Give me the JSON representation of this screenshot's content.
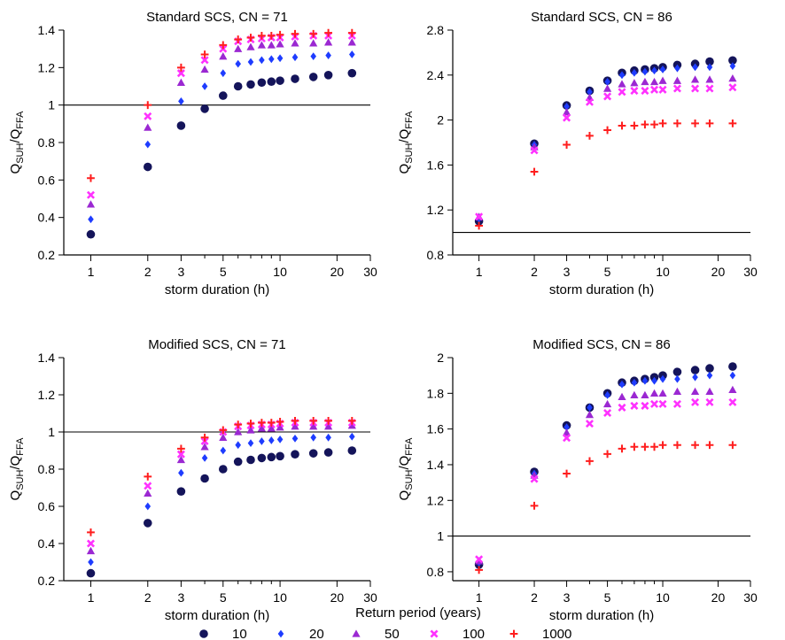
{
  "x_label": "storm duration (h)",
  "y_label": {
    "main": "Q",
    "sub1": "SUH",
    "sep": "/Q",
    "sub2": "FFA"
  },
  "legend": {
    "title": "Return period (years)",
    "entries": [
      {
        "label": "10",
        "color": "#14145a",
        "marker": "circle"
      },
      {
        "label": "20",
        "color": "#1e3cff",
        "marker": "diamond"
      },
      {
        "label": "50",
        "color": "#9b28d2",
        "marker": "triangle"
      },
      {
        "label": "100",
        "color": "#ff32ff",
        "marker": "x"
      },
      {
        "label": "1000",
        "color": "#ff1e1e",
        "marker": "plus"
      }
    ]
  },
  "chart_data": [
    {
      "type": "scatter",
      "title": "Standard SCS, CN = 71",
      "x_scale": "log",
      "xlim": [
        0.72,
        30
      ],
      "x_ticks": [
        1,
        2,
        3,
        5,
        10,
        20,
        30
      ],
      "ylim": [
        0.2,
        1.4
      ],
      "y_ticks": [
        "0.2",
        "0.4",
        "0.6",
        "0.8",
        "1",
        "1.2",
        "1.4"
      ],
      "reference_line": 1,
      "x": [
        1,
        2,
        3,
        4,
        5,
        6,
        7,
        8,
        9,
        10,
        12,
        15,
        18,
        24
      ],
      "series": [
        {
          "name": "10",
          "values": [
            0.31,
            0.67,
            0.89,
            0.98,
            1.05,
            1.1,
            1.11,
            1.12,
            1.125,
            1.13,
            1.14,
            1.15,
            1.16,
            1.17
          ]
        },
        {
          "name": "20",
          "values": [
            0.39,
            0.79,
            1.02,
            1.1,
            1.17,
            1.22,
            1.23,
            1.24,
            1.245,
            1.25,
            1.255,
            1.26,
            1.265,
            1.27
          ]
        },
        {
          "name": "50",
          "values": [
            0.47,
            0.88,
            1.12,
            1.19,
            1.26,
            1.3,
            1.31,
            1.32,
            1.32,
            1.325,
            1.33,
            1.33,
            1.335,
            1.335
          ]
        },
        {
          "name": "100",
          "values": [
            0.52,
            0.94,
            1.17,
            1.24,
            1.3,
            1.34,
            1.35,
            1.355,
            1.36,
            1.36,
            1.365,
            1.37,
            1.37,
            1.37
          ]
        },
        {
          "name": "1000",
          "values": [
            0.61,
            1.0,
            1.2,
            1.27,
            1.32,
            1.35,
            1.36,
            1.37,
            1.37,
            1.375,
            1.38,
            1.38,
            1.385,
            1.385
          ]
        }
      ]
    },
    {
      "type": "scatter",
      "title": "Standard SCS, CN = 86",
      "x_scale": "log",
      "xlim": [
        0.72,
        30
      ],
      "x_ticks": [
        1,
        2,
        3,
        5,
        10,
        20,
        30
      ],
      "ylim": [
        0.8,
        2.8
      ],
      "y_ticks": [
        "0.8",
        "1.2",
        "1.6",
        "2",
        "2.4",
        "2.8"
      ],
      "reference_line": 1,
      "x": [
        1,
        2,
        3,
        4,
        5,
        6,
        7,
        8,
        9,
        10,
        12,
        15,
        18,
        24
      ],
      "series": [
        {
          "name": "10",
          "values": [
            1.1,
            1.79,
            2.13,
            2.26,
            2.35,
            2.42,
            2.44,
            2.45,
            2.46,
            2.47,
            2.49,
            2.5,
            2.52,
            2.53
          ]
        },
        {
          "name": "20",
          "values": [
            1.12,
            1.78,
            2.12,
            2.25,
            2.34,
            2.4,
            2.42,
            2.43,
            2.44,
            2.45,
            2.46,
            2.47,
            2.47,
            2.48
          ]
        },
        {
          "name": "50",
          "values": [
            1.14,
            1.76,
            2.07,
            2.2,
            2.28,
            2.32,
            2.33,
            2.34,
            2.34,
            2.35,
            2.35,
            2.36,
            2.36,
            2.37
          ]
        },
        {
          "name": "100",
          "values": [
            1.14,
            1.73,
            2.02,
            2.16,
            2.21,
            2.25,
            2.26,
            2.26,
            2.27,
            2.27,
            2.28,
            2.28,
            2.28,
            2.29
          ]
        },
        {
          "name": "1000",
          "values": [
            1.06,
            1.54,
            1.78,
            1.86,
            1.91,
            1.95,
            1.95,
            1.96,
            1.96,
            1.97,
            1.97,
            1.97,
            1.97,
            1.97
          ]
        }
      ]
    },
    {
      "type": "scatter",
      "title": "Modified SCS, CN = 71",
      "x_scale": "log",
      "xlim": [
        0.72,
        30
      ],
      "x_ticks": [
        1,
        2,
        3,
        5,
        10,
        20,
        30
      ],
      "ylim": [
        0.2,
        1.4
      ],
      "y_ticks": [
        "0.2",
        "0.4",
        "0.6",
        "0.8",
        "1",
        "1.2",
        "1.4"
      ],
      "reference_line": 1,
      "x": [
        1,
        2,
        3,
        4,
        5,
        6,
        7,
        8,
        9,
        10,
        12,
        15,
        18,
        24
      ],
      "series": [
        {
          "name": "10",
          "values": [
            0.24,
            0.51,
            0.68,
            0.75,
            0.8,
            0.84,
            0.85,
            0.86,
            0.865,
            0.87,
            0.88,
            0.885,
            0.89,
            0.9
          ]
        },
        {
          "name": "20",
          "values": [
            0.3,
            0.6,
            0.78,
            0.86,
            0.9,
            0.93,
            0.94,
            0.95,
            0.955,
            0.96,
            0.965,
            0.97,
            0.97,
            0.975
          ]
        },
        {
          "name": "50",
          "values": [
            0.36,
            0.67,
            0.85,
            0.92,
            0.97,
            1.0,
            1.01,
            1.02,
            1.02,
            1.025,
            1.03,
            1.03,
            1.03,
            1.035
          ]
        },
        {
          "name": "100",
          "values": [
            0.4,
            0.71,
            0.88,
            0.95,
            1.0,
            1.03,
            1.035,
            1.04,
            1.04,
            1.045,
            1.05,
            1.05,
            1.05,
            1.05
          ]
        },
        {
          "name": "1000",
          "values": [
            0.46,
            0.76,
            0.91,
            0.97,
            1.01,
            1.04,
            1.045,
            1.05,
            1.05,
            1.055,
            1.06,
            1.06,
            1.06,
            1.06
          ]
        }
      ]
    },
    {
      "type": "scatter",
      "title": "Modified SCS, CN = 86",
      "x_scale": "log",
      "xlim": [
        0.72,
        30
      ],
      "x_ticks": [
        1,
        2,
        3,
        5,
        10,
        20,
        30
      ],
      "ylim": [
        0.75,
        2.0
      ],
      "y_ticks": [
        "0.8",
        "1",
        "1.2",
        "1.4",
        "1.6",
        "1.8",
        "2"
      ],
      "reference_line": 1,
      "x": [
        1,
        2,
        3,
        4,
        5,
        6,
        7,
        8,
        9,
        10,
        12,
        15,
        18,
        24
      ],
      "series": [
        {
          "name": "10",
          "values": [
            0.84,
            1.36,
            1.62,
            1.72,
            1.8,
            1.86,
            1.87,
            1.88,
            1.89,
            1.9,
            1.92,
            1.93,
            1.94,
            1.95
          ]
        },
        {
          "name": "20",
          "values": [
            0.85,
            1.35,
            1.61,
            1.72,
            1.79,
            1.85,
            1.86,
            1.87,
            1.87,
            1.88,
            1.88,
            1.89,
            1.9,
            1.9
          ]
        },
        {
          "name": "50",
          "values": [
            0.86,
            1.34,
            1.58,
            1.68,
            1.74,
            1.78,
            1.79,
            1.79,
            1.8,
            1.8,
            1.81,
            1.81,
            1.81,
            1.82
          ]
        },
        {
          "name": "100",
          "values": [
            0.87,
            1.32,
            1.55,
            1.63,
            1.69,
            1.72,
            1.73,
            1.73,
            1.74,
            1.74,
            1.74,
            1.75,
            1.75,
            1.75
          ]
        },
        {
          "name": "1000",
          "values": [
            0.81,
            1.17,
            1.35,
            1.42,
            1.46,
            1.49,
            1.5,
            1.5,
            1.5,
            1.51,
            1.51,
            1.51,
            1.51,
            1.51
          ]
        }
      ]
    }
  ]
}
